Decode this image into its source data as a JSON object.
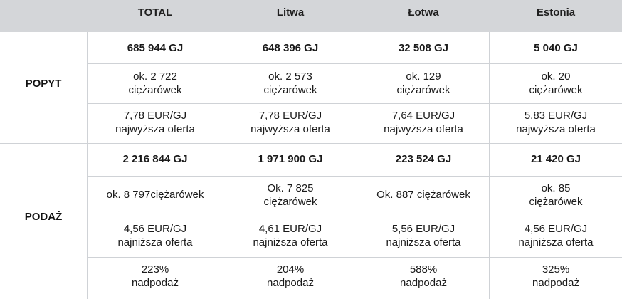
{
  "header": {
    "total": "TOTAL",
    "litwa": "Litwa",
    "lotwa": "Łotwa",
    "estonia": "Estonia"
  },
  "popyt": {
    "label": "POPYT",
    "rows": [
      [
        "685 944 GJ",
        "648 396 GJ",
        "32 508 GJ",
        "5 040 GJ"
      ],
      [
        [
          "ok. 2 722",
          "ciężarówek"
        ],
        [
          "ok. 2 573",
          "ciężarówek"
        ],
        [
          "ok. 129",
          "ciężarówek"
        ],
        [
          "ok. 20",
          "ciężarówek"
        ]
      ],
      [
        [
          "7,78 EUR/GJ",
          "najwyższa oferta"
        ],
        [
          "7,78 EUR/GJ",
          "najwyższa oferta"
        ],
        [
          "7,64 EUR/GJ",
          "najwyższa oferta"
        ],
        [
          "5,83 EUR/GJ",
          "najwyższa oferta"
        ]
      ]
    ]
  },
  "podaz": {
    "label": "PODAŻ",
    "rows": [
      [
        "2 216 844 GJ",
        "1 971 900 GJ",
        "223 524 GJ",
        "21 420 GJ"
      ],
      [
        [
          "ok. 8 797ciężarówek"
        ],
        [
          "Ok. 7 825",
          "ciężarówek"
        ],
        [
          "Ok. 887 ciężarówek"
        ],
        [
          "ok. 85",
          "ciężarówek"
        ]
      ],
      [
        [
          "4,56 EUR/GJ",
          "najniższa oferta"
        ],
        [
          "4,61 EUR/GJ",
          "najniższa oferta"
        ],
        [
          "5,56 EUR/GJ",
          "najniższa oferta"
        ],
        [
          "4,56 EUR/GJ",
          "najniższa oferta"
        ]
      ],
      [
        [
          "223%",
          "nadpodaż"
        ],
        [
          "204%",
          "nadpodaż"
        ],
        [
          "588%",
          "nadpodaż"
        ],
        [
          "325%",
          "nadpodaż"
        ]
      ]
    ]
  }
}
